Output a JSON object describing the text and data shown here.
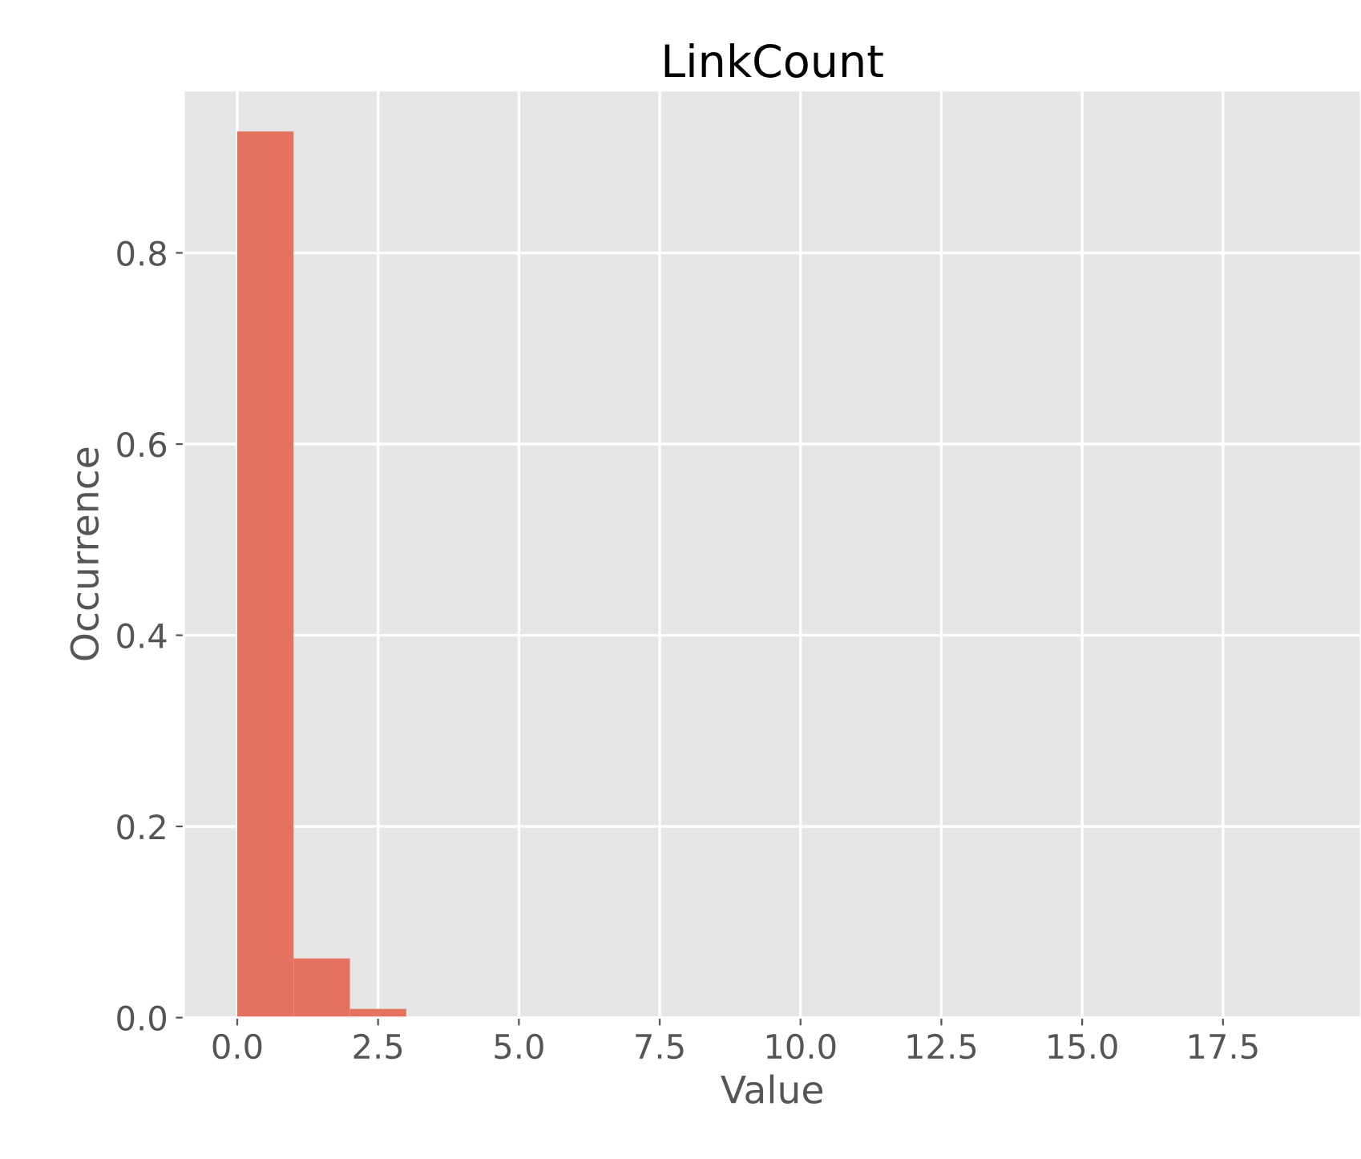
{
  "chart_data": {
    "type": "histogram",
    "title": "LinkCount",
    "xlabel": "Value",
    "ylabel": "Occurrence",
    "bins": [
      0,
      1,
      2,
      3,
      4,
      5,
      6,
      7,
      8,
      9,
      10,
      11,
      12,
      13,
      14,
      15,
      16,
      17,
      18,
      19
    ],
    "values": [
      0.927,
      0.062,
      0.009,
      0,
      0,
      0,
      0,
      0,
      0,
      0,
      0,
      0,
      0,
      0,
      0,
      0,
      0,
      0,
      0
    ],
    "color": "#e5725f",
    "xlim": [
      -0.95,
      19.95
    ],
    "xticks": [
      {
        "value": 0,
        "label": "0.0"
      },
      {
        "value": 2.5,
        "label": "2.5"
      },
      {
        "value": 5,
        "label": "5.0"
      },
      {
        "value": 7.5,
        "label": "7.5"
      },
      {
        "value": 10,
        "label": "10.0"
      },
      {
        "value": 12.5,
        "label": "12.5"
      },
      {
        "value": 15,
        "label": "15.0"
      },
      {
        "value": 17.5,
        "label": "17.5"
      }
    ],
    "ylim": [
      0,
      0.97
    ],
    "yticks": [
      {
        "value": 0,
        "label": "0.0"
      },
      {
        "value": 0.2,
        "label": "0.2"
      },
      {
        "value": 0.4,
        "label": "0.4"
      },
      {
        "value": 0.6,
        "label": "0.6"
      },
      {
        "value": 0.8,
        "label": "0.8"
      }
    ],
    "grid": true
  }
}
